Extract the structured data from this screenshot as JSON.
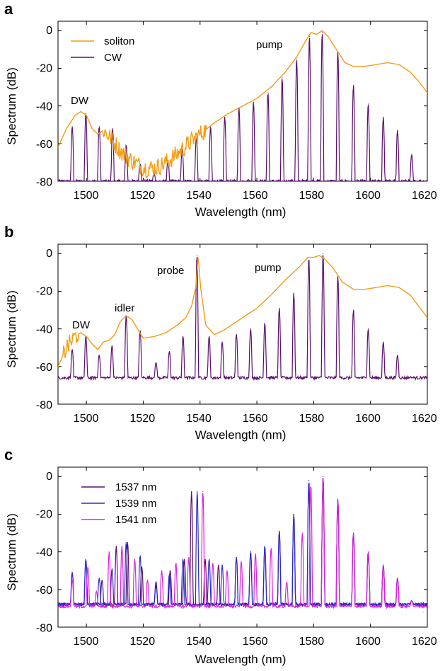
{
  "chart_data": [
    {
      "type": "line",
      "panel": "a",
      "xlabel": "Wavelength (nm)",
      "ylabel": "Spectrum (dB)",
      "xlim": [
        1490,
        1620
      ],
      "ylim": [
        -80,
        5
      ],
      "xticks": [
        1500,
        1520,
        1540,
        1560,
        1580,
        1600,
        1620
      ],
      "yticks": [
        0,
        -20,
        -40,
        -60,
        -80
      ],
      "legend": "top-left",
      "grid": false,
      "series": [
        {
          "name": "soliton",
          "color": "#f39c12",
          "kind": "envelope",
          "x": [
            1490,
            1493,
            1496,
            1498,
            1500,
            1502,
            1504,
            1506,
            1508,
            1510,
            1512,
            1515,
            1518,
            1521,
            1524,
            1527,
            1530,
            1533,
            1536,
            1540,
            1545,
            1550,
            1555,
            1560,
            1565,
            1570,
            1574,
            1577,
            1579,
            1581,
            1583,
            1585,
            1588,
            1591,
            1594,
            1598,
            1602,
            1606,
            1610,
            1614,
            1617,
            1620
          ],
          "y": [
            -62,
            -52,
            -45,
            -43,
            -45,
            -52,
            -55,
            -53,
            -56,
            -60,
            -64,
            -68,
            -71,
            -73,
            -73,
            -71,
            -68,
            -64,
            -60,
            -55,
            -49,
            -44,
            -40,
            -36,
            -30,
            -22,
            -14,
            -6,
            -1,
            -2,
            0,
            -3,
            -10,
            -17,
            -19,
            -19,
            -18,
            -17,
            -18,
            -22,
            -27,
            -33
          ],
          "noise_range": [
            1506,
            1542
          ]
        },
        {
          "name": "CW",
          "color": "#5b0f6e",
          "kind": "comb",
          "peaks_x": [
            1495.0,
            1499.8,
            1504.5,
            1509.2,
            1514.0,
            1518.9,
            1523.8,
            1528.7,
            1533.7,
            1538.7,
            1543.7,
            1548.7,
            1553.7,
            1558.8,
            1563.9,
            1568.9,
            1574.0,
            1578.5,
            1583.0,
            1588.5,
            1594.0,
            1599.2,
            1604.5,
            1609.5,
            1614.5
          ],
          "peaks_y": [
            -51,
            -44,
            -51,
            -52,
            -61,
            -71,
            -76,
            -69,
            -63,
            -57,
            -51,
            -46,
            -41,
            -38,
            -33,
            -25,
            -15,
            -3,
            -1,
            -11,
            -29,
            -39,
            -46,
            -53,
            -66
          ],
          "floor": -80
        }
      ],
      "annotations": [
        "DW",
        "pump"
      ]
    },
    {
      "type": "line",
      "panel": "b",
      "xlabel": "Wavelength (nm)",
      "ylabel": "Spectrum (dB)",
      "xlim": [
        1490,
        1620
      ],
      "ylim": [
        -80,
        5
      ],
      "xticks": [
        1500,
        1520,
        1540,
        1560,
        1580,
        1600,
        1620
      ],
      "yticks": [
        0,
        -20,
        -40,
        -60,
        -80
      ],
      "grid": false,
      "series": [
        {
          "color": "#f39c12",
          "kind": "envelope",
          "x": [
            1490,
            1493,
            1496,
            1498,
            1500,
            1502,
            1504,
            1506,
            1508,
            1510,
            1512,
            1514,
            1516,
            1518,
            1520,
            1524,
            1528,
            1532,
            1535,
            1537,
            1538.5,
            1539.3,
            1540.2,
            1542,
            1545,
            1548,
            1552,
            1556,
            1560,
            1565,
            1570,
            1575,
            1578,
            1580,
            1582,
            1584,
            1587,
            1590,
            1594,
            1598,
            1602,
            1606,
            1610,
            1614,
            1617,
            1620
          ],
          "y": [
            -60,
            -50,
            -44,
            -42,
            -44,
            -48,
            -51,
            -47,
            -46,
            -43,
            -36,
            -33,
            -35,
            -40,
            -45,
            -44,
            -42,
            -38,
            -34,
            -28,
            -18,
            -1,
            -18,
            -38,
            -43,
            -41,
            -37,
            -33,
            -29,
            -22,
            -14,
            -7,
            -2,
            -2,
            -1,
            -3,
            -8,
            -15,
            -19,
            -19,
            -18,
            -17,
            -18,
            -22,
            -28,
            -34
          ],
          "noise_range": [
            1492,
            1497
          ]
        },
        {
          "color": "#5b0f6e",
          "kind": "comb",
          "peaks_x": [
            1495.0,
            1499.8,
            1504.5,
            1509.0,
            1514.0,
            1518.9,
            1524.5,
            1529.2,
            1534.0,
            1538.9,
            1543.2,
            1547.8,
            1552.8,
            1557.8,
            1562.8,
            1567.9,
            1573.0,
            1578.3,
            1583.3,
            1588.5,
            1594.0,
            1599.2,
            1604.5,
            1609.5,
            1614.5
          ],
          "peaks_y": [
            -51,
            -44,
            -54,
            -49,
            -33,
            -41,
            -58,
            -52,
            -44,
            -1,
            -44,
            -47,
            -43,
            -40,
            -37,
            -29,
            -21,
            -2,
            0,
            -12,
            -30,
            -40,
            -47,
            -54,
            -66
          ],
          "floor": -66
        }
      ],
      "annotations": [
        "DW",
        "idler",
        "probe",
        "pump"
      ]
    },
    {
      "type": "line",
      "panel": "c",
      "xlabel": "Wavelength (nm)",
      "ylabel": "Spectrum (dB)",
      "xlim": [
        1490,
        1620
      ],
      "ylim": [
        -80,
        5
      ],
      "xticks": [
        1500,
        1520,
        1540,
        1560,
        1580,
        1600,
        1620
      ],
      "yticks": [
        0,
        -20,
        -40,
        -60,
        -80
      ],
      "legend": "top-left",
      "grid": false,
      "series": [
        {
          "name": "1537 nm",
          "color": "#5b0f6e",
          "kind": "comb",
          "peaks_x": [
            1495.0,
            1499.8,
            1505.5,
            1510.5,
            1514.5,
            1519.5,
            1524.5,
            1529.5,
            1534.5,
            1537.0,
            1541.8,
            1546.5,
            1552.8,
            1557.8,
            1562.8,
            1567.9,
            1573.0,
            1578.3,
            1583.3,
            1588.5,
            1594.0,
            1599.2,
            1604.5,
            1609.5,
            1614.5
          ],
          "peaks_y": [
            -51,
            -45,
            -55,
            -37,
            -35,
            -48,
            -56,
            -50,
            -44,
            -8,
            -44,
            -47,
            -43,
            -40,
            -37,
            -29,
            -20,
            -2,
            0,
            -12,
            -30,
            -40,
            -47,
            -54,
            -66
          ],
          "floor": -68
        },
        {
          "name": "1539 nm",
          "color": "#2b2bcc",
          "kind": "comb",
          "peaks_x": [
            1495.0,
            1499.8,
            1504.5,
            1509.0,
            1514.0,
            1518.9,
            1524.5,
            1529.2,
            1534.0,
            1539.0,
            1543.2,
            1547.8,
            1552.8,
            1557.8,
            1562.8,
            1567.9,
            1573.0,
            1578.3,
            1583.3,
            1588.5,
            1594.0,
            1599.2,
            1604.5,
            1609.5,
            1614.5
          ],
          "peaks_y": [
            -51,
            -44,
            -54,
            -49,
            -35,
            -42,
            -58,
            -52,
            -44,
            -8,
            -44,
            -47,
            -43,
            -40,
            -37,
            -29,
            -20,
            -2,
            0,
            -12,
            -30,
            -40,
            -47,
            -54,
            -66
          ],
          "floor": -68
        },
        {
          "name": "1541 nm",
          "color": "#dd22dd",
          "kind": "comb",
          "peaks_x": [
            1495.0,
            1500.5,
            1503.5,
            1508.0,
            1512.5,
            1517.0,
            1521.5,
            1526.5,
            1531.5,
            1536.0,
            1541.0,
            1544.5,
            1549.5,
            1554.5,
            1559.5,
            1565.0,
            1570.5,
            1576.0,
            1579.0,
            1583.3,
            1588.5,
            1594.0,
            1599.2,
            1604.5,
            1609.5,
            1614.5,
            1618.5
          ],
          "peaks_y": [
            -55,
            -48,
            -61,
            -40,
            -37,
            -44,
            -55,
            -50,
            -46,
            -43,
            -8,
            -46,
            -50,
            -45,
            -41,
            -38,
            -56,
            -30,
            -4,
            0,
            -12,
            -30,
            -40,
            -47,
            -54,
            -66,
            -72
          ],
          "floor": -69
        }
      ]
    }
  ],
  "panels": {
    "a": {
      "letter": "a",
      "xlabel": "Wavelength (nm)",
      "ylabel": "Spectrum (dB)",
      "xtick_labels": [
        "1500",
        "1520",
        "1540",
        "1560",
        "1580",
        "1600",
        "1620"
      ],
      "ytick_labels": [
        "0",
        "-20",
        "-40",
        "-60",
        "-80"
      ],
      "legend": [
        "soliton",
        "CW"
      ],
      "annotations": [
        "DW",
        "pump"
      ]
    },
    "b": {
      "letter": "b",
      "xlabel": "Wavelength (nm)",
      "ylabel": "Spectrum (dB)",
      "xtick_labels": [
        "1500",
        "1520",
        "1540",
        "1560",
        "1580",
        "1600",
        "1620"
      ],
      "ytick_labels": [
        "0",
        "-20",
        "-40",
        "-60",
        "-80"
      ],
      "annotations": [
        "DW",
        "idler",
        "probe",
        "pump"
      ]
    },
    "c": {
      "letter": "c",
      "xlabel": "Wavelength (nm)",
      "ylabel": "Spectrum (dB)",
      "xtick_labels": [
        "1500",
        "1520",
        "1540",
        "1560",
        "1580",
        "1600",
        "1620"
      ],
      "ytick_labels": [
        "0",
        "-20",
        "-40",
        "-60",
        "-80"
      ],
      "legend": [
        "1537 nm",
        "1539 nm",
        "1541 nm"
      ]
    }
  }
}
